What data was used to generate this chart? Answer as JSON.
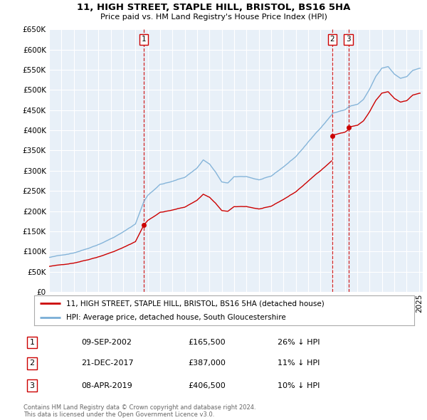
{
  "title": "11, HIGH STREET, STAPLE HILL, BRISTOL, BS16 5HA",
  "subtitle": "Price paid vs. HM Land Registry's House Price Index (HPI)",
  "legend_line1": "11, HIGH STREET, STAPLE HILL, BRISTOL, BS16 5HA (detached house)",
  "legend_line2": "HPI: Average price, detached house, South Gloucestershire",
  "footer1": "Contains HM Land Registry data © Crown copyright and database right 2024.",
  "footer2": "This data is licensed under the Open Government Licence v3.0.",
  "sales": [
    {
      "num": 1,
      "date": "09-SEP-2002",
      "price": 165500,
      "pct": "26% ↓ HPI",
      "year": 2002.69
    },
    {
      "num": 2,
      "date": "21-DEC-2017",
      "price": 387000,
      "pct": "11% ↓ HPI",
      "year": 2017.97
    },
    {
      "num": 3,
      "date": "08-APR-2019",
      "price": 406500,
      "pct": "10% ↓ HPI",
      "year": 2019.27
    }
  ],
  "hpi_color": "#7aaed6",
  "price_color": "#cc0000",
  "plot_background": "#e8f0f8",
  "ylim": [
    0,
    650000
  ],
  "xlim": [
    1995.0,
    2025.3
  ]
}
